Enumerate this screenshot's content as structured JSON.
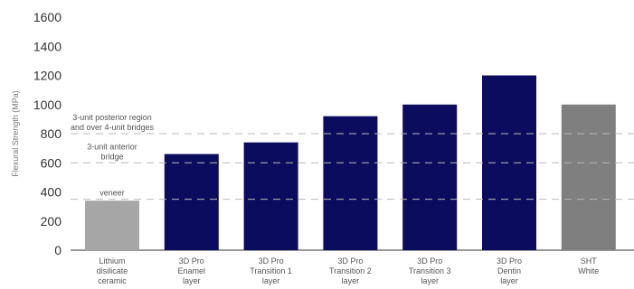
{
  "chart_data": {
    "type": "bar",
    "title": "",
    "ylabel": "Flexural Strength (MPa)",
    "xlabel": "",
    "ylim": [
      0,
      1600
    ],
    "yticks": [
      0,
      200,
      400,
      600,
      800,
      1000,
      1200,
      1400,
      1600
    ],
    "categories": [
      [
        "Lithium",
        "disilicate",
        "ceramic"
      ],
      [
        "3D Pro",
        "Enamel",
        "layer"
      ],
      [
        "3D Pro",
        "Transition 1",
        "layer"
      ],
      [
        "3D Pro",
        "Transition 2",
        "layer"
      ],
      [
        "3D Pro",
        "Transition 3",
        "layer"
      ],
      [
        "3D Pro",
        "Dentin",
        "layer"
      ],
      [
        "SHT",
        "White"
      ]
    ],
    "values": [
      340,
      660,
      740,
      920,
      1000,
      1200,
      1000
    ],
    "colors": [
      "#a6a6a6",
      "#0c0c5e",
      "#0c0c5e",
      "#0c0c5e",
      "#0c0c5e",
      "#0c0c5e",
      "#7f7f7f"
    ],
    "reference_lines": [
      {
        "value": 800,
        "label": [
          "3-unit posterior region",
          "and over 4-unit bridges"
        ]
      },
      {
        "value": 600,
        "label": [
          "3-unit anterior",
          "bridge"
        ]
      },
      {
        "value": 350,
        "label": [
          "veneer"
        ]
      }
    ],
    "grid": false,
    "legend": "none"
  }
}
